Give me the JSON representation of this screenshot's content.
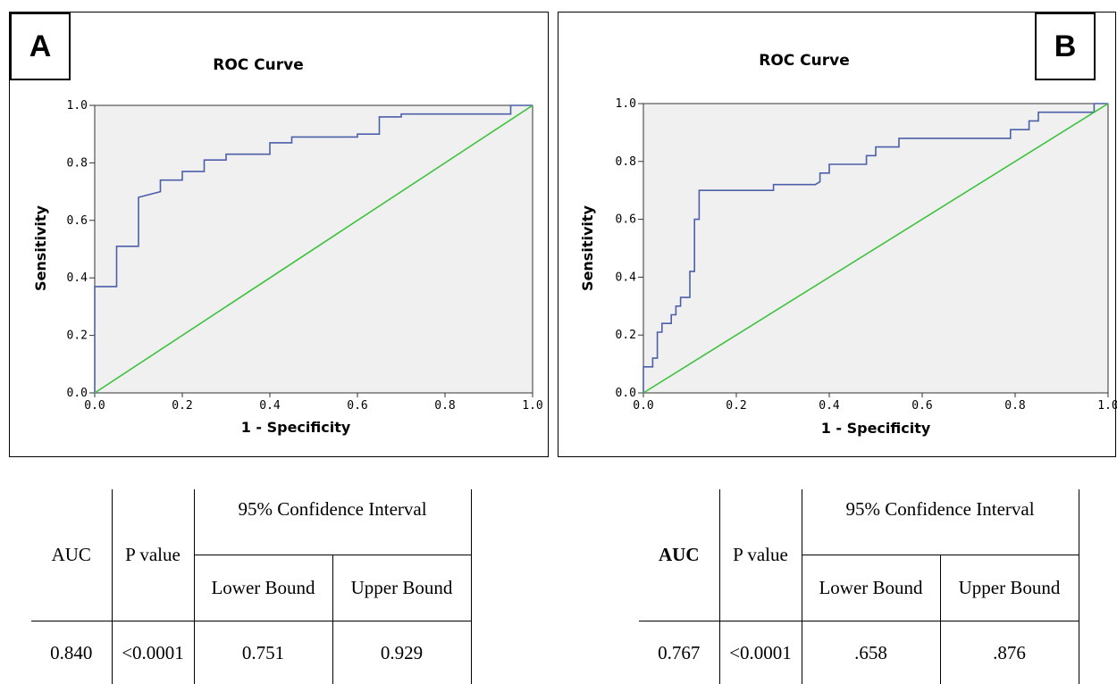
{
  "chart_data": [
    {
      "type": "line",
      "panel_label": "A",
      "title": "ROC Curve",
      "xlabel": "1 - Specificity",
      "ylabel": "Sensitivity",
      "xlim": [
        0,
        1
      ],
      "ylim": [
        0,
        1
      ],
      "x_ticks": [
        "0.0",
        "0.2",
        "0.4",
        "0.6",
        "0.8",
        "1.0"
      ],
      "y_ticks": [
        "0.0",
        "0.2",
        "0.4",
        "0.6",
        "0.8",
        "1.0"
      ],
      "grid": false,
      "series": [
        {
          "color": "#4c5fa8",
          "x": [
            0,
            0,
            0.05,
            0.05,
            0.1,
            0.1,
            0.15,
            0.15,
            0.2,
            0.2,
            0.25,
            0.25,
            0.3,
            0.3,
            0.4,
            0.4,
            0.45,
            0.45,
            0.6,
            0.6,
            0.65,
            0.65,
            0.7,
            0.7,
            0.95,
            0.95,
            1.0
          ],
          "y": [
            0,
            0.37,
            0.37,
            0.51,
            0.51,
            0.68,
            0.7,
            0.74,
            0.74,
            0.77,
            0.77,
            0.81,
            0.81,
            0.83,
            0.83,
            0.87,
            0.87,
            0.89,
            0.89,
            0.9,
            0.9,
            0.96,
            0.96,
            0.97,
            0.97,
            1.0,
            1.0
          ]
        },
        {
          "color": "#3ec23e",
          "x": [
            0,
            1
          ],
          "y": [
            0,
            1
          ]
        }
      ]
    },
    {
      "type": "line",
      "panel_label": "B",
      "title": "ROC Curve",
      "xlabel": "1 - Specificity",
      "ylabel": "Sensitivity",
      "xlim": [
        0,
        1
      ],
      "ylim": [
        0,
        1
      ],
      "x_ticks": [
        "0.0",
        "0.2",
        "0.4",
        "0.6",
        "0.8",
        "1.0"
      ],
      "y_ticks": [
        "0.0",
        "0.2",
        "0.4",
        "0.6",
        "0.8",
        "1.0"
      ],
      "grid": false,
      "series": [
        {
          "color": "#4c5fa8",
          "x": [
            0,
            0,
            0.02,
            0.02,
            0.03,
            0.03,
            0.04,
            0.04,
            0.06,
            0.06,
            0.07,
            0.07,
            0.08,
            0.08,
            0.1,
            0.1,
            0.11,
            0.11,
            0.12,
            0.12,
            0.28,
            0.28,
            0.37,
            0.38,
            0.38,
            0.4,
            0.4,
            0.48,
            0.48,
            0.5,
            0.5,
            0.55,
            0.55,
            0.79,
            0.79,
            0.83,
            0.83,
            0.85,
            0.85,
            0.97,
            0.97,
            1.0
          ],
          "y": [
            0,
            0.09,
            0.09,
            0.12,
            0.12,
            0.21,
            0.21,
            0.24,
            0.24,
            0.27,
            0.27,
            0.3,
            0.3,
            0.33,
            0.33,
            0.42,
            0.42,
            0.6,
            0.6,
            0.7,
            0.7,
            0.72,
            0.72,
            0.73,
            0.76,
            0.76,
            0.79,
            0.79,
            0.82,
            0.82,
            0.85,
            0.85,
            0.88,
            0.88,
            0.91,
            0.91,
            0.94,
            0.94,
            0.97,
            0.97,
            1.0,
            1.0
          ]
        },
        {
          "color": "#3ec23e",
          "x": [
            0,
            1
          ],
          "y": [
            0,
            1
          ]
        }
      ]
    }
  ],
  "table_a": {
    "ci_header": "95% Confidence Interval",
    "auc_header": "AUC",
    "p_header": "P value",
    "lower_header": "Lower Bound",
    "upper_header": "Upper Bound",
    "auc": "0.840",
    "p": "<0.0001",
    "lower": "0.751",
    "upper": "0.929"
  },
  "table_b": {
    "ci_header": "95% Confidence Interval",
    "auc_header": "AUC",
    "p_header": "P value",
    "lower_header": "Lower Bound",
    "upper_header": "Upper Bound",
    "auc": "0.767",
    "p": "<0.0001",
    "lower": ".658",
    "upper": ".876"
  }
}
